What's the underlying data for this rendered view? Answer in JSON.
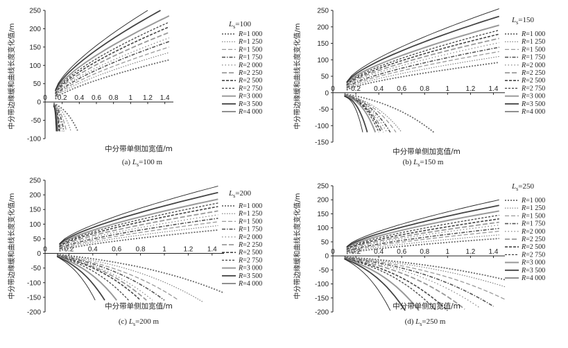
{
  "figure": {
    "series_colors": [
      "#6a6a6a",
      "#777777",
      "#9a9a9a",
      "#555555",
      "#777777",
      "#999999",
      "#444444",
      "#444444",
      "#999999",
      "#444444",
      "#222222"
    ],
    "series_dash": [
      "2,2",
      "1.5,2",
      "6,3",
      "5,2,1.5,2",
      "1.5,3",
      "7,3",
      "4,2",
      "3,2",
      "",
      "",
      ""
    ],
    "series_width": [
      1.8,
      1.1,
      1.3,
      1.6,
      1.1,
      1.8,
      1.6,
      1.3,
      2.0,
      1.8,
      0.9
    ]
  },
  "chart_data": [
    {
      "type": "line",
      "caption_prefix": "(a) ",
      "caption_ls": "L",
      "caption_sub": "s",
      "caption_suffix": "=100 m",
      "legend_title_L": "L",
      "legend_title_sub": "s",
      "legend_title_val": "=100",
      "xlabel": "中分带单侧加宽值/m",
      "ylabel": "中分带边缘缓和曲线长度变化值/m",
      "xlim": [
        0,
        1.5
      ],
      "ylim": [
        -100,
        250
      ],
      "xticks": [
        "0",
        "0.2",
        "0.4",
        "0.6",
        "0.8",
        "1",
        "1.2",
        "1.4"
      ],
      "yticks": [
        "250",
        "200",
        "150",
        "100",
        "50",
        "0",
        "-50",
        "-100"
      ],
      "series": [
        {
          "name": "R=1 000",
          "label": "R",
          "value": "=1 000",
          "upper_end": [
            1.45,
            115
          ],
          "lower_end": [
            0.38,
            -78
          ],
          "lower_mid": -30
        },
        {
          "name": "R=1 250",
          "label": "R",
          "value": "=1 250",
          "upper_end": [
            1.45,
            135
          ],
          "lower_end": [
            0.3,
            -78
          ],
          "lower_mid": -28
        },
        {
          "name": "R=1 500",
          "label": "R",
          "value": "=1 500",
          "upper_end": [
            1.45,
            150
          ],
          "lower_end": [
            0.25,
            -80
          ],
          "lower_mid": -27
        },
        {
          "name": "R=1 750",
          "label": "R",
          "value": "=1 750",
          "upper_end": [
            1.45,
            165
          ],
          "lower_end": [
            0.22,
            -80
          ],
          "lower_mid": -26
        },
        {
          "name": "R=2 000",
          "label": "R",
          "value": "=2 000",
          "upper_end": [
            1.45,
            175
          ],
          "lower_end": [
            0.2,
            -80
          ],
          "lower_mid": -25
        },
        {
          "name": "R=2 250",
          "label": "R",
          "value": "=2 250",
          "upper_end": [
            1.45,
            190
          ],
          "lower_end": [
            0.18,
            -80
          ],
          "lower_mid": -24
        },
        {
          "name": "R=2 500",
          "label": "R",
          "value": "=2 500",
          "upper_end": [
            1.45,
            205
          ],
          "lower_end": [
            0.17,
            -80
          ],
          "lower_mid": -23
        },
        {
          "name": "R=2 750",
          "label": "R",
          "value": "=2 750",
          "upper_end": [
            1.45,
            218
          ],
          "lower_end": [
            0.16,
            -80
          ],
          "lower_mid": -22
        },
        {
          "name": "R=3 000",
          "label": "R",
          "value": "=3 000",
          "upper_end": [
            1.45,
            235
          ],
          "lower_end": [
            0.15,
            -80
          ],
          "lower_mid": -21
        },
        {
          "name": "R=3 500",
          "label": "R",
          "value": "=3 500",
          "upper_end": [
            1.35,
            250
          ],
          "lower_end": [
            0.14,
            -80
          ],
          "lower_mid": -20
        },
        {
          "name": "R=4 000",
          "label": "R",
          "value": "=4 000",
          "upper_end": [
            1.2,
            250
          ],
          "lower_end": [
            0.13,
            -80
          ],
          "lower_mid": -19
        }
      ]
    },
    {
      "type": "line",
      "caption_prefix": "(b) ",
      "caption_ls": "L",
      "caption_sub": "s",
      "caption_suffix": "=150 m",
      "legend_title_L": "L",
      "legend_title_sub": "s",
      "legend_title_val": "=150",
      "xlabel": "中分带单侧加宽值/m",
      "ylabel": "中分带边缘缓和曲线长度变化值/m",
      "xlim": [
        0,
        1.5
      ],
      "ylim": [
        -150,
        250
      ],
      "xticks": [
        "0",
        "0.2",
        "0.4",
        "0.6",
        "0.8",
        "1",
        "1.2",
        "1.4"
      ],
      "yticks": [
        "250",
        "200",
        "150",
        "100",
        "50",
        "0",
        "-50",
        "-100",
        "-150"
      ],
      "series": [
        {
          "name": "R=1 000",
          "label": "R",
          "value": "=1 000",
          "upper_end": [
            1.45,
            92
          ],
          "lower_end": [
            0.88,
            -120
          ],
          "lower_mid": -45
        },
        {
          "name": "R=1 250",
          "label": "R",
          "value": "=1 250",
          "upper_end": [
            1.45,
            110
          ],
          "lower_end": [
            0.6,
            -120
          ],
          "lower_mid": -42
        },
        {
          "name": "R=1 500",
          "label": "R",
          "value": "=1 500",
          "upper_end": [
            1.45,
            125
          ],
          "lower_end": [
            0.55,
            -120
          ],
          "lower_mid": -40
        },
        {
          "name": "R=1 750",
          "label": "R",
          "value": "=1 750",
          "upper_end": [
            1.45,
            138
          ],
          "lower_end": [
            0.5,
            -120
          ],
          "lower_mid": -38
        },
        {
          "name": "R=2 000",
          "label": "R",
          "value": "=2 000",
          "upper_end": [
            1.45,
            152
          ],
          "lower_end": [
            0.47,
            -120
          ],
          "lower_mid": -36
        },
        {
          "name": "R=2 250",
          "label": "R",
          "value": "=2 250",
          "upper_end": [
            1.45,
            165
          ],
          "lower_end": [
            0.44,
            -120
          ],
          "lower_mid": -34
        },
        {
          "name": "R=2 500",
          "label": "R",
          "value": "=2 500",
          "upper_end": [
            1.45,
            178
          ],
          "lower_end": [
            0.42,
            -120
          ],
          "lower_mid": -33
        },
        {
          "name": "R=2 750",
          "label": "R",
          "value": "=2 750",
          "upper_end": [
            1.45,
            190
          ],
          "lower_end": [
            0.4,
            -120
          ],
          "lower_mid": -32
        },
        {
          "name": "R=3 000",
          "label": "R",
          "value": "=3 000",
          "upper_end": [
            1.45,
            205
          ],
          "lower_end": [
            0.37,
            -120
          ],
          "lower_mid": -31
        },
        {
          "name": "R=3 500",
          "label": "R",
          "value": "=3 500",
          "upper_end": [
            1.45,
            232
          ],
          "lower_end": [
            0.3,
            -120
          ],
          "lower_mid": -30
        },
        {
          "name": "R=4 000",
          "label": "R",
          "value": "=4 000",
          "upper_end": [
            1.45,
            255
          ],
          "lower_end": [
            0.26,
            -120
          ],
          "lower_mid": -29
        }
      ]
    },
    {
      "type": "line",
      "caption_prefix": "(c) ",
      "caption_ls": "L",
      "caption_sub": "s",
      "caption_suffix": "=200 m",
      "legend_title_L": "L",
      "legend_title_sub": "s",
      "legend_title_val": "=200",
      "xlabel": "中分带单侧加宽值/m",
      "ylabel": "中分带边缘缓和曲线长度变化值/m",
      "xlim": [
        0,
        1.5
      ],
      "ylim": [
        -200,
        250
      ],
      "xticks": [
        "0",
        "0.2",
        "0.4",
        "0.6",
        "0.8",
        "1",
        "1.2",
        "1.4"
      ],
      "yticks": [
        "250",
        "200",
        "150",
        "100",
        "50",
        "0",
        "-50",
        "-100",
        "-150",
        "-200"
      ],
      "series": [
        {
          "name": "R=1 000",
          "label": "R",
          "value": "=1 000",
          "upper_end": [
            1.45,
            80
          ],
          "lower_end": [
            1.5,
            -135
          ],
          "lower_mid": -55
        },
        {
          "name": "R=1 250",
          "label": "R",
          "value": "=1 250",
          "upper_end": [
            1.45,
            95
          ],
          "lower_end": [
            1.32,
            -165
          ],
          "lower_mid": -62
        },
        {
          "name": "R=1 500",
          "label": "R",
          "value": "=1 500",
          "upper_end": [
            1.45,
            108
          ],
          "lower_end": [
            1.12,
            -160
          ],
          "lower_mid": -65
        },
        {
          "name": "R=1 750",
          "label": "R",
          "value": "=1 750",
          "upper_end": [
            1.45,
            120
          ],
          "lower_end": [
            1.0,
            -160
          ],
          "lower_mid": -66
        },
        {
          "name": "R=2 000",
          "label": "R",
          "value": "=2 000",
          "upper_end": [
            1.45,
            132
          ],
          "lower_end": [
            0.9,
            -160
          ],
          "lower_mid": -67
        },
        {
          "name": "R=2 250",
          "label": "R",
          "value": "=2 250",
          "upper_end": [
            1.45,
            145
          ],
          "lower_end": [
            0.85,
            -160
          ],
          "lower_mid": -68
        },
        {
          "name": "R=2 500",
          "label": "R",
          "value": "=2 500",
          "upper_end": [
            1.45,
            160
          ],
          "lower_end": [
            0.8,
            -160
          ],
          "lower_mid": -69
        },
        {
          "name": "R=2 750",
          "label": "R",
          "value": "=2 750",
          "upper_end": [
            1.45,
            172
          ],
          "lower_end": [
            0.7,
            -160
          ],
          "lower_mid": -70
        },
        {
          "name": "R=3 000",
          "label": "R",
          "value": "=3 000",
          "upper_end": [
            1.45,
            185
          ],
          "lower_end": [
            0.6,
            -160
          ],
          "lower_mid": -71
        },
        {
          "name": "R=3 500",
          "label": "R",
          "value": "=3 500",
          "upper_end": [
            1.45,
            208
          ],
          "lower_end": [
            0.5,
            -160
          ],
          "lower_mid": -72
        },
        {
          "name": "R=4 000",
          "label": "R",
          "value": "=4 000",
          "upper_end": [
            1.45,
            230
          ],
          "lower_end": [
            0.42,
            -160
          ],
          "lower_mid": -73
        }
      ]
    },
    {
      "type": "line",
      "caption_prefix": "(d) ",
      "caption_ls": "L",
      "caption_sub": "s",
      "caption_suffix": "=250 m",
      "legend_title_L": "L",
      "legend_title_sub": "s",
      "legend_title_val": "=250",
      "xlabel": "中分带单侧加宽值/m",
      "ylabel": "中分带边缘缓和曲线长度变化值/m",
      "xlim": [
        0,
        1.5
      ],
      "ylim": [
        -200,
        250
      ],
      "xticks": [
        "0",
        "0.2",
        "0.4",
        "0.6",
        "0.8",
        "1",
        "1.2",
        "1.4"
      ],
      "yticks": [
        "250",
        "200",
        "150",
        "100",
        "50",
        "0",
        "-50",
        "-100",
        "-150",
        "-200"
      ],
      "series": [
        {
          "name": "R=1 000",
          "label": "R",
          "value": "=1 000",
          "upper_end": [
            1.45,
            62
          ],
          "lower_end": [
            1.5,
            -85
          ],
          "lower_mid": -40
        },
        {
          "name": "R=1 250",
          "label": "R",
          "value": "=1 250",
          "upper_end": [
            1.45,
            75
          ],
          "lower_end": [
            1.5,
            -110
          ],
          "lower_mid": -50
        },
        {
          "name": "R=1 500",
          "label": "R",
          "value": "=1 500",
          "upper_end": [
            1.45,
            88
          ],
          "lower_end": [
            1.5,
            -155
          ],
          "lower_mid": -60
        },
        {
          "name": "R=1 750",
          "label": "R",
          "value": "=1 750",
          "upper_end": [
            1.45,
            98
          ],
          "lower_end": [
            1.4,
            -180
          ],
          "lower_mid": -66
        },
        {
          "name": "R=2 000",
          "label": "R",
          "value": "=2 000",
          "upper_end": [
            1.45,
            110
          ],
          "lower_end": [
            1.28,
            -185
          ],
          "lower_mid": -70
        },
        {
          "name": "R=2 250",
          "label": "R",
          "value": "=2 250",
          "upper_end": [
            1.45,
            120
          ],
          "lower_end": [
            1.15,
            -190
          ],
          "lower_mid": -73
        },
        {
          "name": "R=2 500",
          "label": "R",
          "value": "=2 500",
          "upper_end": [
            1.45,
            132
          ],
          "lower_end": [
            1.0,
            -195
          ],
          "lower_mid": -76
        },
        {
          "name": "R=2 750",
          "label": "R",
          "value": "=2 750",
          "upper_end": [
            1.45,
            145
          ],
          "lower_end": [
            0.9,
            -195
          ],
          "lower_mid": -78
        },
        {
          "name": "R=3 000",
          "label": "R",
          "value": "=3 000",
          "upper_end": [
            1.45,
            160
          ],
          "lower_end": [
            0.75,
            -195
          ],
          "lower_mid": -80
        },
        {
          "name": "R=3 500",
          "label": "R",
          "value": "=3 500",
          "upper_end": [
            1.45,
            180
          ],
          "lower_end": [
            0.63,
            -195
          ],
          "lower_mid": -82
        },
        {
          "name": "R=4 000",
          "label": "R",
          "value": "=4 000",
          "upper_end": [
            1.45,
            200
          ],
          "lower_end": [
            0.5,
            -195
          ],
          "lower_mid": -84
        }
      ]
    }
  ]
}
